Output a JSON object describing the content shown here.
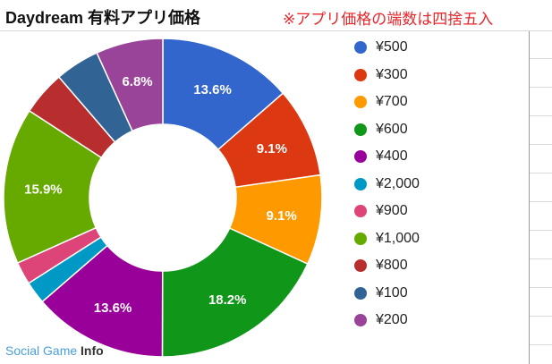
{
  "header": {
    "title": "Daydream 有料アプリ価格",
    "note": "※アプリ価格の端数は四捨五入"
  },
  "watermark": {
    "text_main": "Social Game ",
    "text_bold": "Info"
  },
  "chart_data": {
    "type": "pie",
    "donut": true,
    "title": "Daydream 有料アプリ価格",
    "legend_position": "right",
    "slices": [
      {
        "label": "¥500",
        "value": 13.6,
        "percent_label": "13.6%",
        "color": "#3366cc"
      },
      {
        "label": "¥300",
        "value": 9.1,
        "percent_label": "9.1%",
        "color": "#dc3912"
      },
      {
        "label": "¥700",
        "value": 9.1,
        "percent_label": "9.1%",
        "color": "#ff9900"
      },
      {
        "label": "¥600",
        "value": 18.2,
        "percent_label": "18.2%",
        "color": "#109618"
      },
      {
        "label": "¥400",
        "value": 13.6,
        "percent_label": "13.6%",
        "color": "#990099"
      },
      {
        "label": "¥2,000",
        "value": 2.3,
        "percent_label": "",
        "color": "#0099c6"
      },
      {
        "label": "¥900",
        "value": 2.3,
        "percent_label": "",
        "color": "#dd4477"
      },
      {
        "label": "¥1,000",
        "value": 15.9,
        "percent_label": "15.9%",
        "color": "#66aa00"
      },
      {
        "label": "¥800",
        "value": 4.5,
        "percent_label": "",
        "color": "#b82e2e"
      },
      {
        "label": "¥100",
        "value": 4.5,
        "percent_label": "",
        "color": "#316395"
      },
      {
        "label": "¥200",
        "value": 6.8,
        "percent_label": "6.8%",
        "color": "#994499"
      }
    ]
  }
}
